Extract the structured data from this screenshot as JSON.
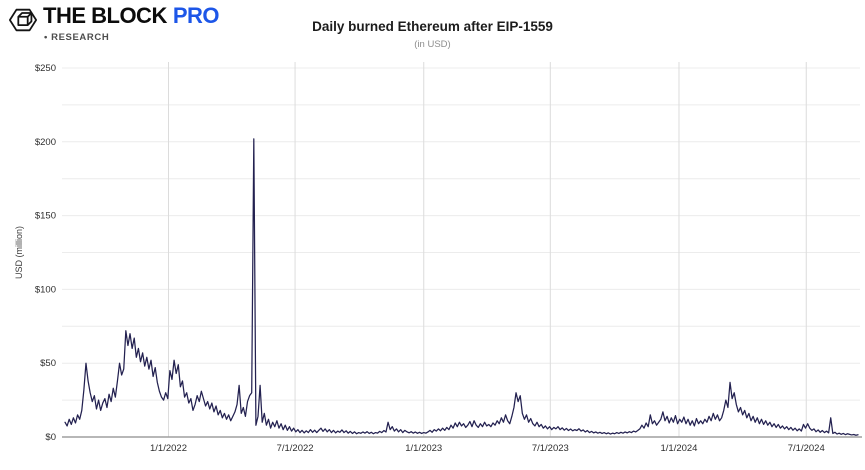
{
  "brand": {
    "wordmark": "THE BLOCK",
    "pro": "PRO",
    "research": "• RESEARCH",
    "pro_color": "#1d56e8"
  },
  "chart_data": {
    "type": "line",
    "title": "Daily burned Ethereum after EIP-1559",
    "subtitle": "(in USD)",
    "ylabel": "USD (million)",
    "ylim": [
      0,
      250
    ],
    "grid_step": 25,
    "legend_position": "none",
    "grid": true,
    "line_color": "#232150",
    "y_ticks": [
      "$0",
      "$50",
      "$100",
      "$150",
      "$200",
      "$250"
    ],
    "y_tick_values": [
      0,
      50,
      100,
      150,
      200,
      250
    ],
    "x_ticks": [
      "1/1/2022",
      "7/1/2022",
      "1/1/2023",
      "7/1/2023",
      "1/1/2024",
      "7/1/2024"
    ],
    "x_tick_dates": [
      "2022-01-01",
      "2022-07-01",
      "2023-01-01",
      "2023-07-01",
      "2024-01-01",
      "2024-07-01"
    ],
    "series": [
      {
        "unit": "USD million per day",
        "start_date": "2021-08-06",
        "step_days": 3,
        "values": [
          10,
          7.5,
          12,
          8.5,
          13,
          9.5,
          15,
          12,
          18,
          32,
          50,
          38,
          30,
          24,
          28,
          19,
          25,
          18,
          23,
          26,
          20,
          29,
          24,
          33,
          27,
          38,
          50,
          42,
          46,
          72,
          62,
          70,
          60,
          67,
          54,
          60,
          51,
          57,
          48,
          54,
          46,
          52,
          41,
          47,
          37,
          31,
          27,
          25,
          30,
          26,
          45,
          39,
          52,
          43,
          49,
          34,
          38,
          27,
          30,
          23,
          26,
          18,
          22,
          28,
          24,
          31,
          26,
          21,
          24,
          19,
          23,
          17,
          21,
          15,
          18,
          13,
          16,
          12,
          15,
          11,
          14,
          17,
          22,
          35,
          16,
          20,
          14,
          24,
          28,
          30,
          202,
          8,
          14,
          35,
          10,
          16,
          8,
          12,
          6,
          10,
          7,
          11,
          6,
          9,
          5,
          8,
          4.5,
          7,
          4,
          6,
          3.5,
          5,
          3,
          4.5,
          2.8,
          4.2,
          3,
          5,
          3.2,
          4.6,
          3,
          4.5,
          6,
          3.8,
          5.5,
          3.5,
          5,
          3,
          4.5,
          2.8,
          4,
          3.2,
          4.8,
          3,
          4.2,
          2.6,
          3.8,
          2.4,
          3.5,
          2.2,
          3,
          2.5,
          3.4,
          2.6,
          3.6,
          2.4,
          3.2,
          2.2,
          3,
          2.6,
          3.8,
          3,
          4.4,
          3.4,
          10,
          5,
          7,
          4,
          5.5,
          3.5,
          5,
          3,
          4.5,
          3.5,
          2.8,
          3.6,
          2.6,
          3.4,
          2.5,
          3.2,
          2.4,
          3,
          2.6,
          3.4,
          4.5,
          3.2,
          5,
          4,
          5.5,
          4.2,
          6,
          4.5,
          6.5,
          5,
          8,
          6,
          9.5,
          7,
          10,
          7.5,
          9,
          6.5,
          8,
          10.5,
          7,
          11,
          8,
          6.5,
          9,
          7,
          10,
          7.5,
          8.5,
          7,
          9.5,
          8,
          11,
          9,
          13,
          10,
          15,
          11,
          9,
          14,
          20,
          30,
          24,
          28,
          16,
          12,
          15,
          10,
          12.5,
          9,
          7.5,
          10,
          7,
          8.5,
          6,
          7.5,
          5.5,
          7,
          5,
          6.5,
          5.5,
          7,
          5,
          6.2,
          4.6,
          5.8,
          4.4,
          5.4,
          4.2,
          5,
          4.4,
          5.6,
          4,
          4.8,
          3.4,
          4.4,
          3,
          3.8,
          2.8,
          3.4,
          2.6,
          3.2,
          2.4,
          3,
          2.2,
          2.8,
          2,
          2.6,
          2.2,
          3,
          2.4,
          3.2,
          2.6,
          3.4,
          2.8,
          3.6,
          3,
          4,
          3.4,
          4.4,
          5.5,
          8,
          6,
          9.5,
          7,
          15,
          9,
          11,
          8,
          10,
          12,
          17,
          11,
          14,
          9.5,
          13,
          10,
          14.5,
          9,
          12,
          10,
          13.5,
          9,
          12,
          8,
          11,
          7.5,
          12.5,
          9,
          11,
          9,
          12,
          10,
          14,
          11,
          16,
          12,
          15,
          11,
          13,
          18,
          25,
          20,
          37,
          26,
          30,
          22,
          17,
          20,
          15,
          18,
          13,
          16,
          11,
          14,
          10,
          13,
          9,
          12,
          8.5,
          11,
          8,
          10,
          7,
          9,
          6.5,
          8.5,
          6,
          7.5,
          5.5,
          7,
          5,
          6.5,
          4.6,
          6,
          4.2,
          5.5,
          4,
          8.5,
          6,
          9,
          6,
          4.5,
          5.5,
          3.6,
          4.8,
          3.2,
          4.4,
          3,
          4,
          2.8,
          13,
          2.4,
          3.2,
          2,
          2.6,
          1.8,
          2.4,
          1.6,
          2.2,
          1.8,
          1.4,
          1.7,
          1.2,
          1.5
        ]
      }
    ]
  }
}
